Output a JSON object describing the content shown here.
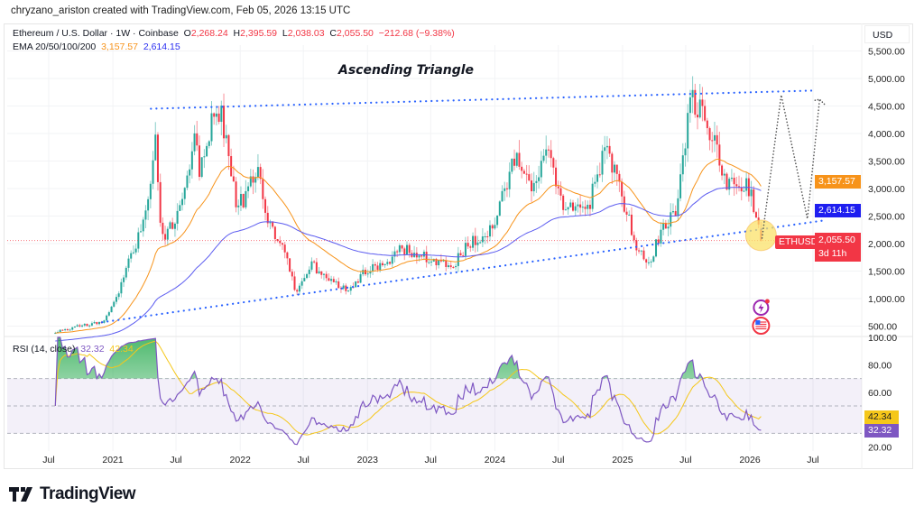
{
  "credit": "chryzano_ariston created with TradingView.com, Feb 05, 2026 13:15 UTC",
  "symbol": {
    "name": "Ethereum / U.S. Dollar · 1W · Coinbase",
    "o_label": "O",
    "open": "2,268.24",
    "h_label": "H",
    "high": "2,395.59",
    "l_label": "L",
    "low": "2,038.03",
    "c_label": "C",
    "close": "2,055.50",
    "change": "−212.68 (−9.38%)",
    "ticker": "ETHUSD",
    "countdown": "3d 11h"
  },
  "ema": {
    "label": "EMA 20/50/100/200",
    "v1": "3,157.57",
    "v2": "2,614.15",
    "c1": "#f7931a",
    "c2": "#2a2ef0"
  },
  "rsi": {
    "label": "RSI (14, close)",
    "value": "32.32",
    "signal": "42.34",
    "line_color": "#7e57c2",
    "signal_color": "#f5c71a"
  },
  "currency": "USD",
  "annotation": {
    "title": "Ascending Triangle"
  },
  "brand": "TradingView",
  "colors": {
    "up": "#26a69a",
    "down": "#f23645",
    "trendline": "#2962ff",
    "projection": "#555555",
    "highlight": "#fbe26a"
  },
  "chart_data": {
    "type": "candlestick",
    "interval": "1W",
    "price_axis": {
      "ticks": [
        "5,500.00",
        "5,000.00",
        "4,500.00",
        "4,000.00",
        "3,500.00",
        "3,000.00",
        "2,500.00",
        "2,000.00",
        "1,500.00",
        "1,000.00",
        "500.00"
      ],
      "tick_values": [
        5500,
        5000,
        4500,
        4000,
        3500,
        3000,
        2500,
        2000,
        1500,
        1000,
        500
      ]
    },
    "rsi_axis": {
      "ticks": [
        "100.00",
        "80.00",
        "60.00",
        "20.00"
      ],
      "tick_values": [
        100,
        80,
        60,
        20
      ],
      "bands": [
        70,
        50,
        30
      ]
    },
    "x_ticks": [
      {
        "label": "Jul",
        "date": "2020-07-01"
      },
      {
        "label": "2021",
        "date": "2021-01-01"
      },
      {
        "label": "Jul",
        "date": "2021-07-01"
      },
      {
        "label": "2022",
        "date": "2022-01-01"
      },
      {
        "label": "Jul",
        "date": "2022-07-01"
      },
      {
        "label": "2023",
        "date": "2023-01-01"
      },
      {
        "label": "Jul",
        "date": "2023-07-01"
      },
      {
        "label": "2024",
        "date": "2024-01-01"
      },
      {
        "label": "Jul",
        "date": "2024-07-01"
      },
      {
        "label": "2025",
        "date": "2025-01-01"
      },
      {
        "label": "Jul",
        "date": "2025-07-01"
      },
      {
        "label": "2026",
        "date": "2026-01-01"
      },
      {
        "label": "Jul",
        "date": "2026-07-01"
      }
    ],
    "close_keypoints": [
      [
        "2020-07-20",
        400
      ],
      [
        "2020-12-06",
        600
      ],
      [
        "2021-01-01",
        850
      ],
      [
        "2021-03-07",
        2000
      ],
      [
        "2021-04-12",
        2650
      ],
      [
        "2021-05-01",
        3970
      ],
      [
        "2021-05-19",
        2100
      ],
      [
        "2021-07-01",
        2400
      ],
      [
        "2021-08-22",
        3850
      ],
      [
        "2021-09-09",
        3300
      ],
      [
        "2021-10-27",
        4540
      ],
      [
        "2021-11-22",
        3970
      ],
      [
        "2021-12-20",
        2650
      ],
      [
        "2022-01-22",
        2900
      ],
      [
        "2022-02-17",
        3475
      ],
      [
        "2022-03-18",
        2330
      ],
      [
        "2022-05-01",
        2000
      ],
      [
        "2022-06-10",
        1100
      ],
      [
        "2022-07-24",
        1670
      ],
      [
        "2022-09-02",
        1340
      ],
      [
        "2022-11-03",
        1180
      ],
      [
        "2022-12-28",
        1500
      ],
      [
        "2023-02-28",
        1670
      ],
      [
        "2023-04-09",
        1900
      ],
      [
        "2023-06-14",
        1750
      ],
      [
        "2023-08-30",
        1590
      ],
      [
        "2023-10-20",
        2000
      ],
      [
        "2023-12-28",
        2300
      ],
      [
        "2024-02-28",
        3560
      ],
      [
        "2024-04-20",
        2900
      ],
      [
        "2024-05-26",
        3640
      ],
      [
        "2024-07-20",
        2650
      ],
      [
        "2024-09-20",
        2560
      ],
      [
        "2024-11-13",
        3800
      ],
      [
        "2025-01-04",
        2740
      ],
      [
        "2025-02-10",
        1920
      ],
      [
        "2025-03-18",
        1590
      ],
      [
        "2025-05-01",
        2400
      ],
      [
        "2025-06-03",
        2560
      ],
      [
        "2025-07-16",
        4640
      ],
      [
        "2025-08-26",
        4380
      ],
      [
        "2025-10-01",
        3560
      ],
      [
        "2025-10-27",
        3060
      ],
      [
        "2025-12-06",
        3150
      ],
      [
        "2026-01-04",
        2900
      ],
      [
        "2026-02-05",
        2055.5
      ]
    ],
    "last_candle": {
      "open": 2268.24,
      "high": 2395.59,
      "low": 2038.03,
      "close": 2055.5
    },
    "ema_last": [
      3157.57,
      2614.15
    ],
    "rsi_last": 32.32,
    "rsi_signal_last": 42.34,
    "trendlines": {
      "resistance": [
        [
          "2021-04-20",
          4450
        ],
        [
          "2026-07-01",
          4780
        ]
      ],
      "support": [
        [
          "2020-12-01",
          570
        ],
        [
          "2026-08-01",
          2420
        ]
      ]
    },
    "projection": [
      [
        "2026-02-05",
        2100
      ],
      [
        "2026-04-01",
        4700
      ],
      [
        "2026-06-15",
        2450
      ],
      [
        "2026-07-20",
        4620
      ]
    ]
  }
}
